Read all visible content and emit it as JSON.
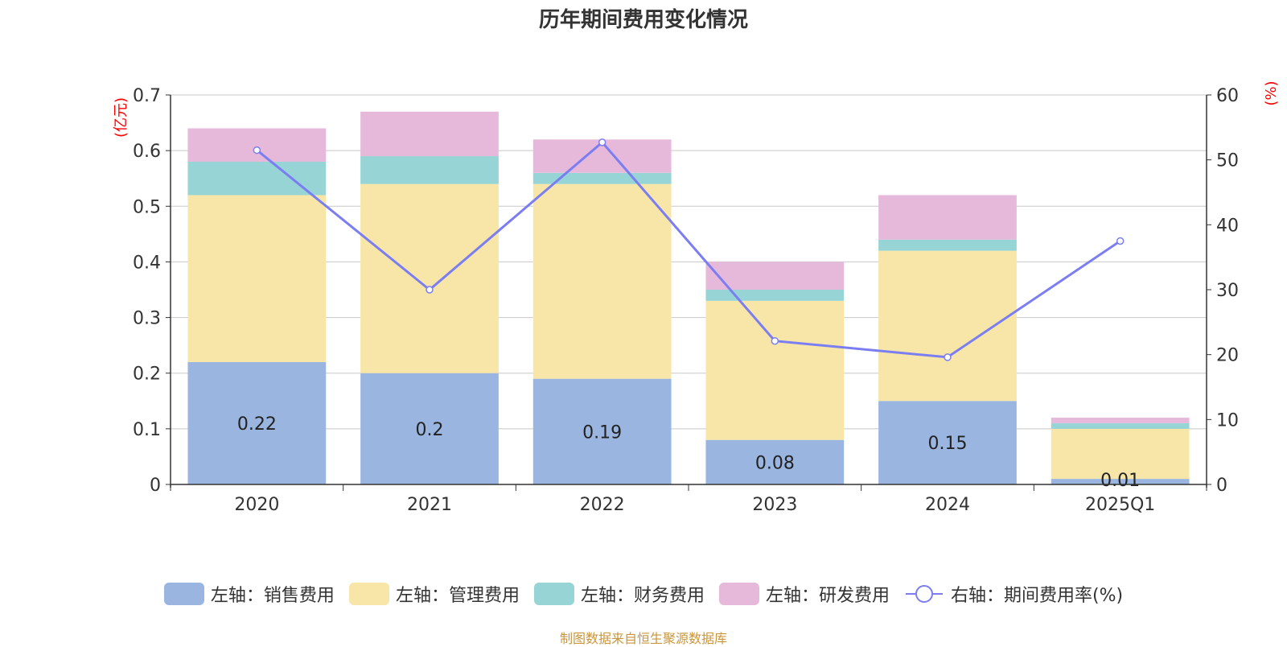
{
  "page_title": "历年期间费用变化情况",
  "source_text": "制图数据来自恒生聚源数据库",
  "colors": {
    "sales": "#9ab6e0",
    "admin": "#f7e6a7",
    "finance": "#96d4d5",
    "rnd": "#e6b9da",
    "rate_line": "#7b7ef2",
    "axis_unit": "#ff0000",
    "grid": "#c8c8c8",
    "axis": "#333333"
  },
  "chart_data": {
    "type": "bar",
    "title": "历年期间费用变化情况",
    "categories": [
      "2020",
      "2021",
      "2022",
      "2023",
      "2024",
      "2025Q1"
    ],
    "left_axis": {
      "unit_label": "(亿元)",
      "ylim": [
        0,
        0.7
      ],
      "ticks": [
        "0",
        "0.1",
        "0.2",
        "0.3",
        "0.4",
        "0.5",
        "0.6",
        "0.7"
      ]
    },
    "right_axis": {
      "unit_label": "(%)",
      "ylim": [
        0,
        60
      ],
      "ticks": [
        "0",
        "10",
        "20",
        "30",
        "40",
        "50",
        "60"
      ]
    },
    "stacked": true,
    "grid": true,
    "legend_position": "bottom",
    "series": [
      {
        "name": "左轴：销售费用",
        "axis": "left",
        "values": [
          0.22,
          0.2,
          0.19,
          0.08,
          0.15,
          0.01
        ],
        "labels": [
          "0.22",
          "0.2",
          "0.19",
          "0.08",
          "0.15",
          "0.01"
        ]
      },
      {
        "name": "左轴：管理费用",
        "axis": "left",
        "values": [
          0.3,
          0.34,
          0.35,
          0.25,
          0.27,
          0.09
        ]
      },
      {
        "name": "左轴：财务费用",
        "axis": "left",
        "values": [
          0.06,
          0.05,
          0.02,
          0.02,
          0.02,
          0.01
        ]
      },
      {
        "name": "左轴：研发费用",
        "axis": "left",
        "values": [
          0.06,
          0.08,
          0.06,
          0.05,
          0.08,
          0.01
        ]
      },
      {
        "name": "右轴：期间费用率(%)",
        "axis": "right",
        "type": "line",
        "values": [
          51.5,
          30.0,
          52.7,
          22.1,
          19.6,
          37.5
        ]
      }
    ]
  }
}
